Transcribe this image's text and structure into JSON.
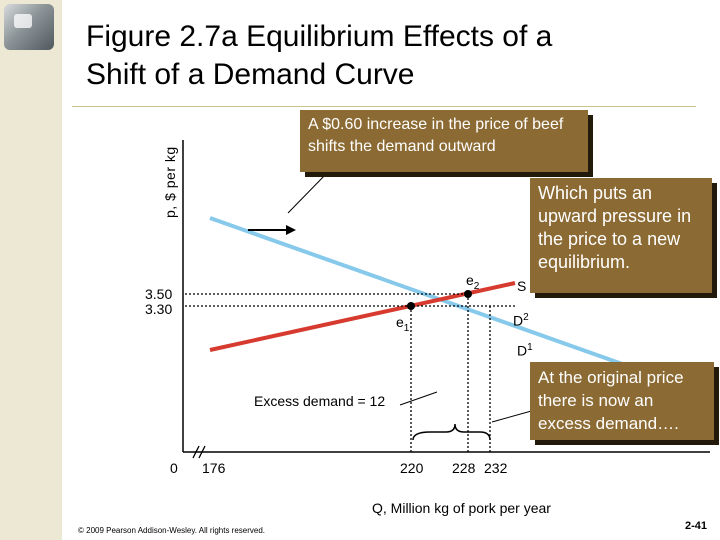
{
  "slide": {
    "title_line1": "Figure 2.7a  Equilibrium Effects of a",
    "title_line2": "Shift of a Demand Curve",
    "copyright": "© 2009 Pearson Addison-Wesley. All rights reserved.",
    "page_number": "2-41"
  },
  "callouts": {
    "increase": "A $0.60 increase in the price of beef shifts the demand outward",
    "pressure": "Which puts an upward pressure in the price to a new equilibrium.",
    "excess": "At the original price there is now an excess demand…."
  },
  "graph": {
    "y_axis_label": "p, $ per kg",
    "x_axis_label": "Q, Million kg of pork per year",
    "y_ticks": [
      "3.50",
      "3.30"
    ],
    "x_ticks": [
      "0",
      "176",
      "220",
      "228",
      "232"
    ],
    "curve_labels": {
      "supply": "S",
      "demand2": "D",
      "demand2_sup": "2",
      "demand1": "D",
      "demand1_sup": "1"
    },
    "point_labels": {
      "e1": "e",
      "e1_sub": "1",
      "e2": "e",
      "e2_sub": "2"
    },
    "excess_demand": "Excess demand = 12"
  },
  "colors": {
    "supply": "#d73a2f",
    "demand": "#86c9ea",
    "callout_bg": "#8c6a33",
    "sidebar": "#ece8d4"
  }
}
